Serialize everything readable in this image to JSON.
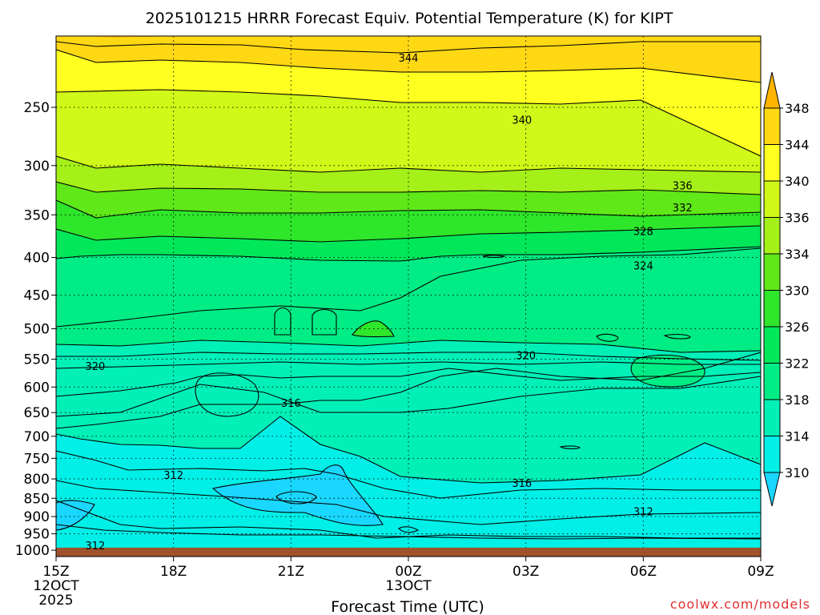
{
  "chart_data": {
    "type": "heatmap",
    "subtype": "time-height contour (filled)",
    "title": "2025101215 HRRR Forecast Equiv. Potential Temperature (K) for KIPT",
    "xlabel": "Forecast Time (UTC)",
    "ylabel": "",
    "credit": "coolwx.com/models",
    "x_ticks": [
      {
        "hour": 15,
        "label": "15Z",
        "sub1": "12OCT",
        "sub2": "2025"
      },
      {
        "hour": 18,
        "label": "18Z",
        "sub1": "",
        "sub2": ""
      },
      {
        "hour": 21,
        "label": "21Z",
        "sub1": "",
        "sub2": ""
      },
      {
        "hour": 24,
        "label": "00Z",
        "sub1": "13OCT",
        "sub2": ""
      },
      {
        "hour": 27,
        "label": "03Z",
        "sub1": "",
        "sub2": ""
      },
      {
        "hour": 30,
        "label": "06Z",
        "sub1": "",
        "sub2": ""
      },
      {
        "hour": 33,
        "label": "09Z",
        "sub1": "",
        "sub2": ""
      }
    ],
    "xlim": [
      15,
      33
    ],
    "y_axis": "pressure (hPa), log scale, inverted",
    "ylim": [
      1020,
      200
    ],
    "y_ticks": [
      250,
      300,
      350,
      400,
      450,
      500,
      550,
      600,
      650,
      700,
      750,
      800,
      850,
      900,
      950,
      1000
    ],
    "ground_level_hPa": 992,
    "grid": "dotted",
    "colorbar": {
      "placement": "right",
      "ticks": [
        310,
        314,
        318,
        322,
        326,
        330,
        334,
        336,
        340,
        344,
        348
      ],
      "bands": [
        {
          "range": "<310",
          "color": "#19d7ff"
        },
        {
          "range": "310-314",
          "color": "#00f0e8"
        },
        {
          "range": "314-318",
          "color": "#00f0b8"
        },
        {
          "range": "318-322",
          "color": "#00ec84"
        },
        {
          "range": "322-326",
          "color": "#00e85a"
        },
        {
          "range": "326-330",
          "color": "#2ee62a"
        },
        {
          "range": "330-334",
          "color": "#60e818"
        },
        {
          "range": "334-336",
          "color": "#a4f018"
        },
        {
          "range": "336-340",
          "color": "#d0f818"
        },
        {
          "range": "340-344",
          "color": "#ffff20"
        },
        {
          "range": "344-348",
          "color": "#ffd814"
        },
        {
          "range": ">348",
          "color": "#ffb400"
        }
      ]
    },
    "contour_labels": [
      {
        "value": "344",
        "hour": 24.0,
        "p": 214
      },
      {
        "value": "340",
        "hour": 26.9,
        "p": 260
      },
      {
        "value": "336",
        "hour": 31.0,
        "p": 319
      },
      {
        "value": "332",
        "hour": 31.0,
        "p": 342
      },
      {
        "value": "328",
        "hour": 30.0,
        "p": 368
      },
      {
        "value": "324",
        "hour": 30.0,
        "p": 410
      },
      {
        "value": "320",
        "hour": 16.0,
        "p": 562
      },
      {
        "value": "320",
        "hour": 27.0,
        "p": 543
      },
      {
        "value": "316",
        "hour": 21.0,
        "p": 630
      },
      {
        "value": "316",
        "hour": 26.9,
        "p": 810
      },
      {
        "value": "312",
        "hour": 18.0,
        "p": 790
      },
      {
        "value": "312",
        "hour": 30.0,
        "p": 885
      },
      {
        "value": "312",
        "hour": 16.0,
        "p": 985
      }
    ]
  }
}
